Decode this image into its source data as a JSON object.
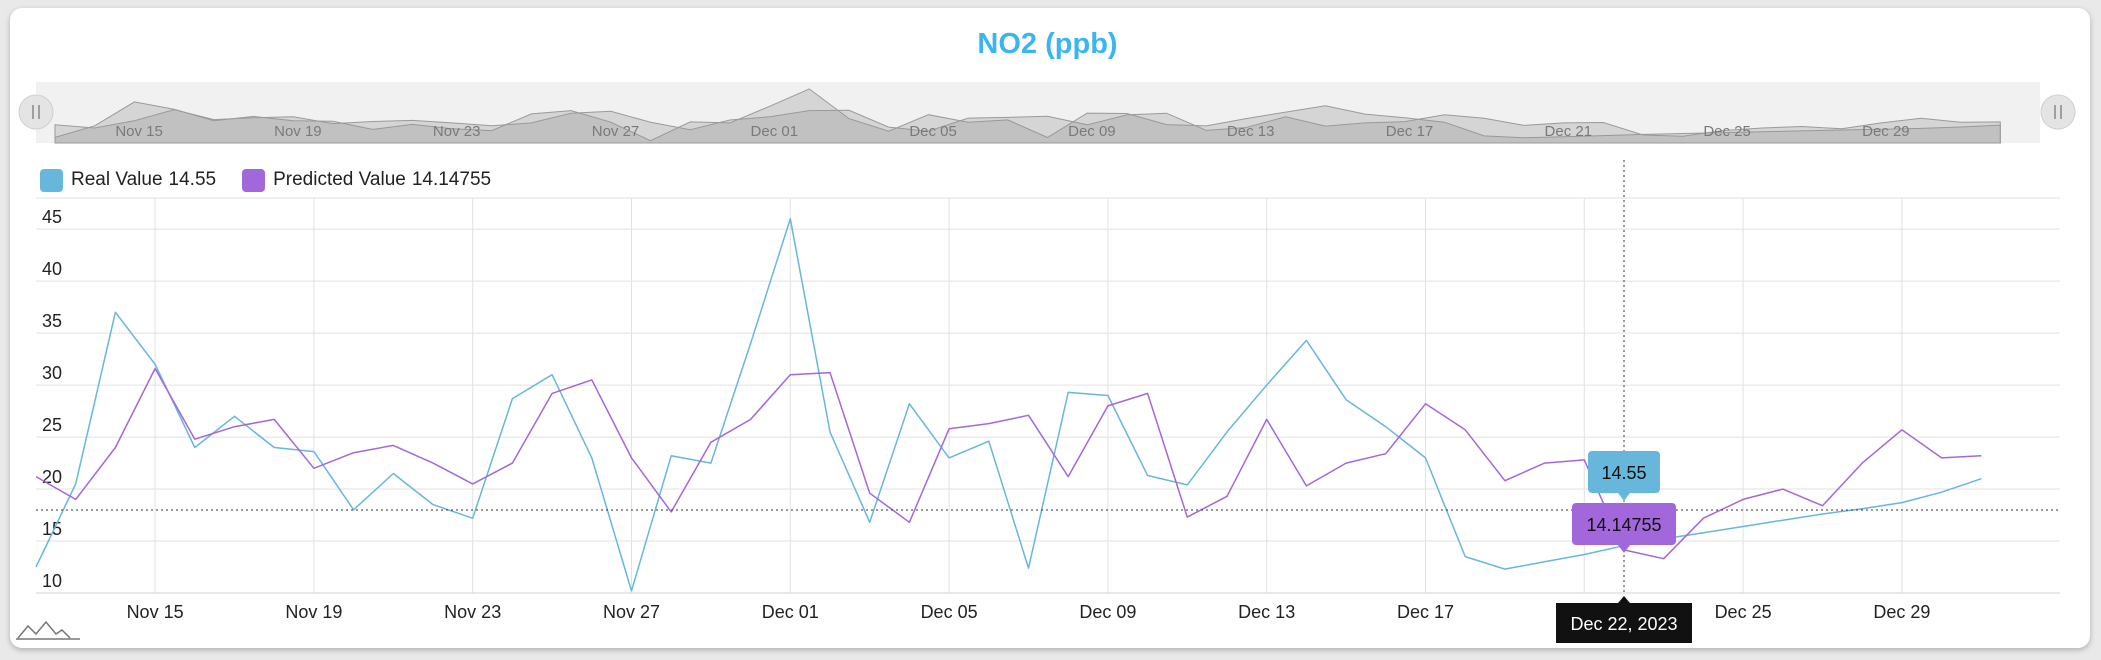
{
  "chart_data": {
    "type": "line",
    "title": "NO2 (ppb)",
    "x": [
      "Nov 12",
      "Nov 13",
      "Nov 14",
      "Nov 15",
      "Nov 16",
      "Nov 17",
      "Nov 18",
      "Nov 19",
      "Nov 20",
      "Nov 21",
      "Nov 22",
      "Nov 23",
      "Nov 24",
      "Nov 25",
      "Nov 26",
      "Nov 27",
      "Nov 28",
      "Nov 29",
      "Nov 30",
      "Dec 01",
      "Dec 02",
      "Dec 03",
      "Dec 04",
      "Dec 05",
      "Dec 06",
      "Dec 07",
      "Dec 08",
      "Dec 09",
      "Dec 10",
      "Dec 11",
      "Dec 12",
      "Dec 13",
      "Dec 14",
      "Dec 15",
      "Dec 16",
      "Dec 17",
      "Dec 18",
      "Dec 19",
      "Dec 20",
      "Dec 21",
      "Dec 22",
      "Dec 23",
      "Dec 24",
      "Dec 25",
      "Dec 26",
      "Dec 27",
      "Dec 28",
      "Dec 29",
      "Dec 30",
      "Dec 31"
    ],
    "series": [
      {
        "name": "Real Value",
        "color": "#67b7dc",
        "values": [
          12.5,
          20.5,
          37,
          32,
          24,
          27,
          24,
          23.6,
          18,
          21.5,
          18.5,
          17.2,
          28.7,
          31,
          23,
          10.2,
          23.2,
          22.5,
          34,
          46,
          25.5,
          16.8,
          28.2,
          23,
          24.6,
          12.4,
          29.3,
          29,
          21.3,
          20.4,
          25.5,
          30,
          34.3,
          28.6,
          26,
          23,
          13.5,
          12.3,
          13,
          13.7,
          14.55,
          15.2,
          15.8,
          16.4,
          17,
          17.6,
          18.1,
          18.7,
          19.7,
          21
        ]
      },
      {
        "name": "Predicted Value",
        "color": "#a367dc",
        "values": [
          21.2,
          19,
          24,
          31.6,
          24.8,
          26,
          26.7,
          22,
          23.5,
          24.2,
          22.5,
          20.5,
          22.5,
          29.2,
          30.5,
          23,
          17.8,
          24.5,
          26.7,
          31,
          31.2,
          19.6,
          16.8,
          25.8,
          26.3,
          27.1,
          21.2,
          28,
          29.2,
          17.3,
          19.3,
          26.7,
          20.3,
          22.5,
          23.4,
          28.2,
          25.7,
          20.8,
          22.5,
          22.8,
          14.14755,
          13.3,
          17.2,
          19,
          20,
          18.4,
          22.5,
          25.7,
          23,
          23.2
        ]
      }
    ],
    "legend": [
      {
        "name": "Real Value",
        "value": "14.55"
      },
      {
        "name": "Predicted Value",
        "value": "14.14755"
      }
    ],
    "y_ticks": [
      "10",
      "15",
      "20",
      "25",
      "30",
      "35",
      "40",
      "45"
    ],
    "ylim": [
      10,
      48
    ],
    "x_tick_labels": [
      "Nov 15",
      "Nov 19",
      "Nov 23",
      "Nov 27",
      "Dec 01",
      "Dec 05",
      "Dec 09",
      "Dec 13",
      "Dec 17",
      "Dec 21",
      "Dec 25",
      "Dec 29"
    ],
    "cursor": {
      "date_label": "Dec 22, 2023",
      "real_label": "14.55",
      "predicted_label": "14.14755"
    },
    "grid": true,
    "legend_position": "top-left",
    "navigator": true
  }
}
